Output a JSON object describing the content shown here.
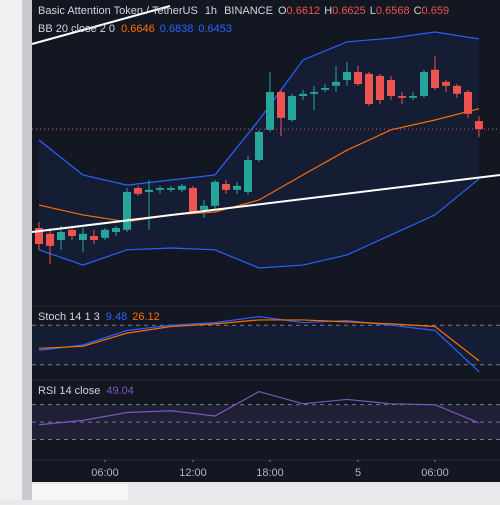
{
  "chart_data": {
    "type": "candlestick",
    "symbol": "Basic Attention Token / TetherUS",
    "interval": "1h",
    "exchange": "BINANCE",
    "ohlc_labels": [
      "O",
      "H",
      "L",
      "C"
    ],
    "up_color": "#26a69a",
    "down_color": "#ef5350",
    "ylim": [
      0.612,
      0.6945
    ],
    "open": [
      0.6318,
      0.6302,
      0.6285,
      0.6313,
      0.6285,
      0.6296,
      0.6291,
      0.6307,
      0.6313,
      0.6428,
      0.6417,
      0.6423,
      0.6423,
      0.6423,
      0.6428,
      0.6368,
      0.6379,
      0.6439,
      0.6423,
      0.6417,
      0.6505,
      0.6588,
      0.6692,
      0.6615,
      0.6681,
      0.6687,
      0.6698,
      0.6709,
      0.6725,
      0.6747,
      0.6742,
      0.6736,
      0.6725,
      0.6681,
      0.6676,
      0.6681,
      0.6753,
      0.672,
      0.6709,
      0.6692,
      0.6612
    ],
    "high": [
      0.6335,
      0.6318,
      0.6324,
      0.6324,
      0.6318,
      0.6313,
      0.6318,
      0.6324,
      0.6428,
      0.6434,
      0.645,
      0.6434,
      0.6434,
      0.6439,
      0.6434,
      0.6395,
      0.645,
      0.645,
      0.6445,
      0.6516,
      0.6588,
      0.6747,
      0.6698,
      0.6687,
      0.6698,
      0.6709,
      0.6714,
      0.6764,
      0.6775,
      0.6764,
      0.6747,
      0.6742,
      0.6736,
      0.6692,
      0.6692,
      0.6753,
      0.6791,
      0.6725,
      0.6714,
      0.6698,
      0.6625
    ],
    "low": [
      0.6258,
      0.6219,
      0.6258,
      0.6285,
      0.6252,
      0.6274,
      0.6285,
      0.6296,
      0.6307,
      0.6406,
      0.6313,
      0.6412,
      0.6417,
      0.6417,
      0.6357,
      0.6346,
      0.6368,
      0.6412,
      0.6412,
      0.6409,
      0.65,
      0.6582,
      0.6571,
      0.661,
      0.667,
      0.6643,
      0.6692,
      0.6692,
      0.6709,
      0.6709,
      0.6654,
      0.6659,
      0.667,
      0.6659,
      0.667,
      0.6676,
      0.6698,
      0.6692,
      0.6676,
      0.6621,
      0.6568
    ],
    "close": [
      0.6274,
      0.6269,
      0.6307,
      0.6296,
      0.6302,
      0.6285,
      0.6313,
      0.6318,
      0.6417,
      0.6412,
      0.6423,
      0.6428,
      0.6428,
      0.6434,
      0.6362,
      0.6379,
      0.6445,
      0.6423,
      0.6434,
      0.6505,
      0.6582,
      0.6692,
      0.6621,
      0.6681,
      0.6687,
      0.6692,
      0.6703,
      0.672,
      0.6747,
      0.6714,
      0.6659,
      0.667,
      0.6681,
      0.6676,
      0.6681,
      0.6747,
      0.6703,
      0.6709,
      0.6687,
      0.6632,
      0.659
    ],
    "x_labels": [
      {
        "index": 6,
        "label": "06:00"
      },
      {
        "index": 14,
        "label": "12:00"
      },
      {
        "index": 21,
        "label": "18:00"
      },
      {
        "index": 29,
        "label": "5"
      },
      {
        "index": 36,
        "label": "06:00"
      }
    ],
    "bb": {
      "label": "BB 20 close 2 0",
      "x": [
        0,
        4,
        8,
        12,
        16,
        20,
        24,
        28,
        32,
        36,
        40
      ],
      "basis": [
        0.6381,
        0.6354,
        0.6335,
        0.6354,
        0.6362,
        0.6395,
        0.6464,
        0.6532,
        0.6588,
        0.6615,
        0.6646
      ],
      "upper": [
        0.656,
        0.6464,
        0.6436,
        0.645,
        0.6464,
        0.6615,
        0.678,
        0.683,
        0.684,
        0.6857,
        0.6838
      ],
      "lower": [
        0.6258,
        0.6216,
        0.6258,
        0.6263,
        0.6258,
        0.6208,
        0.6216,
        0.6244,
        0.6299,
        0.6354,
        0.6453
      ],
      "basis_color": "#ff6d00",
      "band_color": "#2962ff"
    },
    "stoch": {
      "label": "Stoch 14 1 3",
      "ylim": [
        0,
        100
      ],
      "yticks": [
        80,
        20
      ],
      "x": [
        0,
        4,
        8,
        12,
        16,
        20,
        24,
        28,
        32,
        36,
        40
      ],
      "k": [
        42,
        50,
        72,
        80,
        84,
        93,
        84,
        87,
        80,
        72,
        9.48
      ],
      "d": [
        45,
        48,
        68,
        78,
        82,
        88,
        88,
        85,
        82,
        78,
        26.12
      ],
      "k_color": "#2962ff",
      "d_color": "#ff6d00"
    },
    "rsi": {
      "label": "RSI 14 close",
      "ylim": [
        10,
        96
      ],
      "yticks": [
        70,
        50,
        30
      ],
      "x": [
        0,
        4,
        8,
        12,
        16,
        20,
        24,
        28,
        32,
        36,
        40
      ],
      "values": [
        47,
        52,
        61,
        63,
        57,
        85,
        71,
        76,
        71,
        70,
        49.04
      ],
      "color": "#7e57c2"
    }
  }
}
